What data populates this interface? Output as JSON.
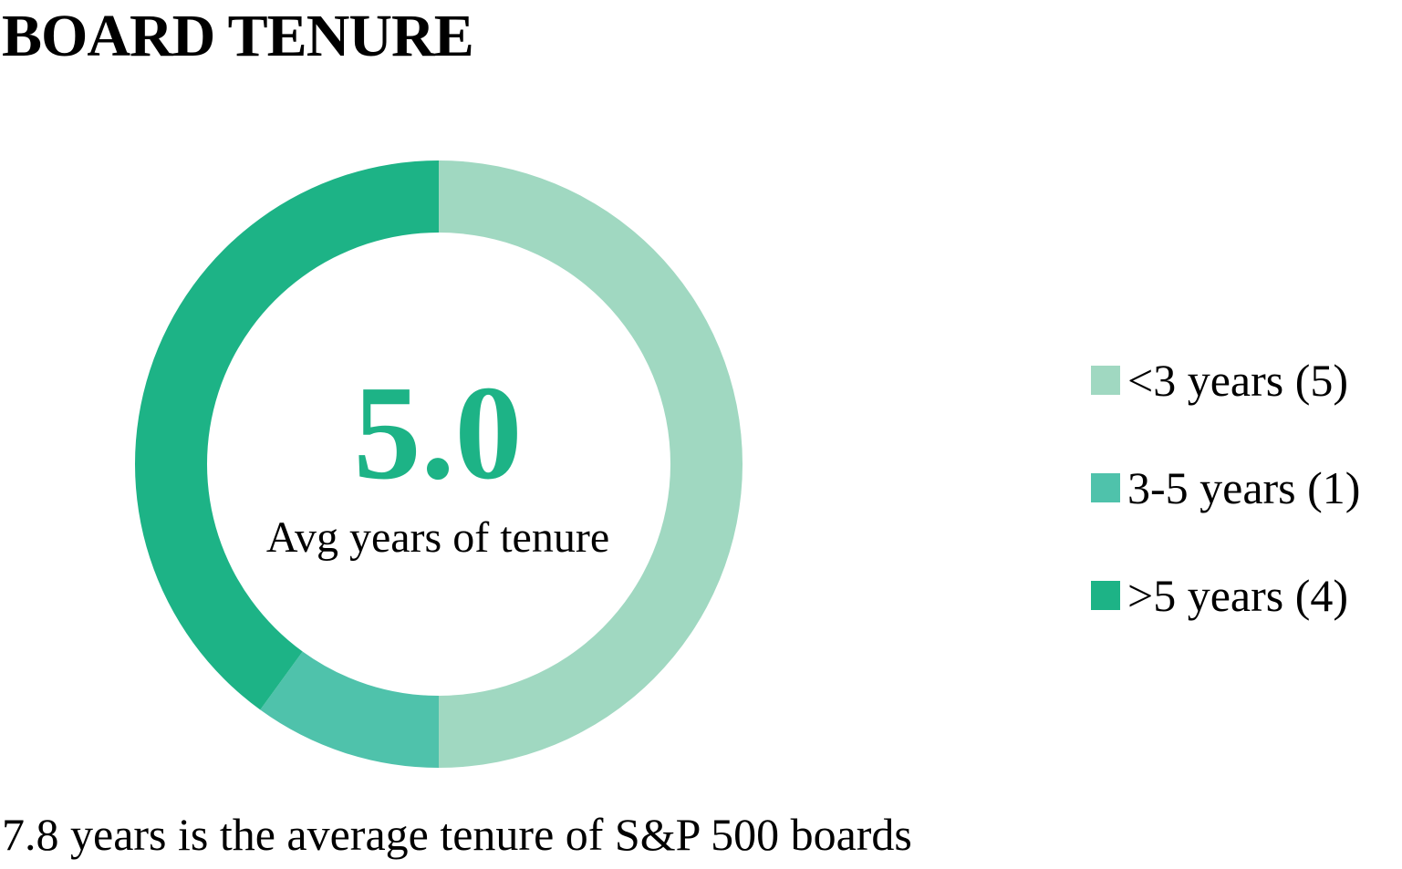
{
  "title": "BOARD TENURE",
  "center": {
    "value": "5.0",
    "label": "Avg years of tenure"
  },
  "footnote": "7.8 years is the average tenure of S&P 500 boards",
  "colors": {
    "accent": "#1db386",
    "lt3": "#a0d8c1",
    "mid": "#4fc2ab",
    "gt5": "#1db386"
  },
  "chart_data": {
    "type": "pie",
    "variant": "donut",
    "title": "BOARD TENURE",
    "categories": [
      "<3 years (5)",
      "3-5 years (1)",
      ">5 years (4)"
    ],
    "values": [
      5,
      1,
      4
    ],
    "colors": [
      "#a0d8c1",
      "#4fc2ab",
      "#1db386"
    ],
    "legend": "right"
  }
}
